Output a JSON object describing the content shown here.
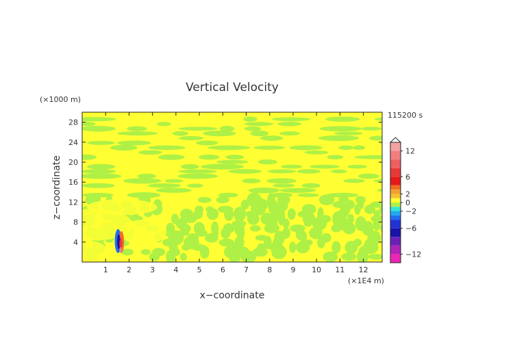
{
  "chart_data": {
    "type": "heatmap",
    "title": "Vertical Velocity",
    "xlabel": "x−coordinate",
    "ylabel": "z−coordinate",
    "x_unit": "(×1E4 m)",
    "y_unit": "(×1000 m)",
    "time_label": "115200 s",
    "xlim": [
      0,
      12.8
    ],
    "ylim": [
      0,
      30
    ],
    "x_ticks": [
      "1",
      "2",
      "3",
      "4",
      "5",
      "6",
      "7",
      "8",
      "9",
      "10",
      "11",
      "12"
    ],
    "y_ticks": [
      "4",
      "8",
      "12",
      "16",
      "20",
      "24",
      "28"
    ],
    "colorbar": {
      "ticks": [
        {
          "value": 12,
          "label": "12"
        },
        {
          "value": 6,
          "label": "6"
        },
        {
          "value": 2,
          "label": "2"
        },
        {
          "value": 0,
          "label": "0"
        },
        {
          "value": -2,
          "label": "−2"
        },
        {
          "value": -6,
          "label": "−6"
        },
        {
          "value": -12,
          "label": "−12"
        }
      ],
      "levels": [
        {
          "min": 12,
          "max": 14,
          "color": "#f4a3a3"
        },
        {
          "min": 10,
          "max": 12,
          "color": "#f27f7f"
        },
        {
          "min": 8,
          "max": 10,
          "color": "#ef5f5f"
        },
        {
          "min": 6,
          "max": 8,
          "color": "#e83838"
        },
        {
          "min": 4,
          "max": 6,
          "color": "#e51a1a"
        },
        {
          "min": 3,
          "max": 4,
          "color": "#f07020"
        },
        {
          "min": 2,
          "max": 3,
          "color": "#f3a030"
        },
        {
          "min": 1,
          "max": 2,
          "color": "#f5c030"
        },
        {
          "min": 0,
          "max": 1,
          "color": "#ffff33"
        },
        {
          "min": -1,
          "max": 0,
          "color": "#aef046"
        },
        {
          "min": -2,
          "max": -1,
          "color": "#33e5d3"
        },
        {
          "min": -3,
          "max": -2,
          "color": "#20a8f0"
        },
        {
          "min": -4,
          "max": -3,
          "color": "#1f6ff0"
        },
        {
          "min": -6,
          "max": -4,
          "color": "#2233d6"
        },
        {
          "min": -8,
          "max": -6,
          "color": "#1a13a8"
        },
        {
          "min": -10,
          "max": -8,
          "color": "#6a21b8"
        },
        {
          "min": -12,
          "max": -10,
          "color": "#b023b8"
        },
        {
          "min": -14,
          "max": -12,
          "color": "#f025b6"
        }
      ]
    },
    "field_colors": {
      "positive": "#ffff33",
      "negative": "#aef046"
    }
  }
}
